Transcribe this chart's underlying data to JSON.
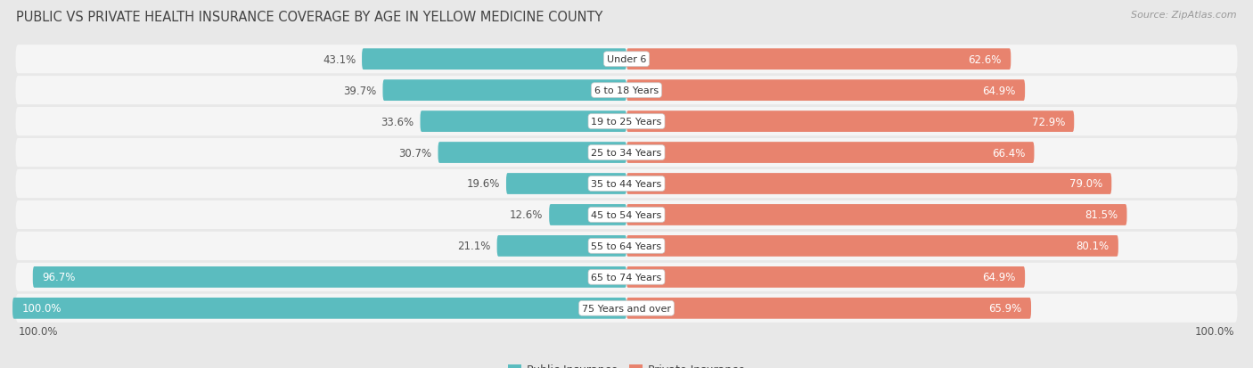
{
  "title": "PUBLIC VS PRIVATE HEALTH INSURANCE COVERAGE BY AGE IN YELLOW MEDICINE COUNTY",
  "source": "Source: ZipAtlas.com",
  "categories": [
    "Under 6",
    "6 to 18 Years",
    "19 to 25 Years",
    "25 to 34 Years",
    "35 to 44 Years",
    "45 to 54 Years",
    "55 to 64 Years",
    "65 to 74 Years",
    "75 Years and over"
  ],
  "public_values": [
    43.1,
    39.7,
    33.6,
    30.7,
    19.6,
    12.6,
    21.1,
    96.7,
    100.0
  ],
  "private_values": [
    62.6,
    64.9,
    72.9,
    66.4,
    79.0,
    81.5,
    80.1,
    64.9,
    65.9
  ],
  "public_color": "#5bbcbf",
  "private_color": "#e8836e",
  "background_color": "#e8e8e8",
  "bar_background": "#f5f5f5",
  "bar_height": 0.68,
  "title_fontsize": 10.5,
  "label_fontsize": 8.5,
  "category_fontsize": 8.0,
  "legend_fontsize": 9,
  "source_fontsize": 8
}
